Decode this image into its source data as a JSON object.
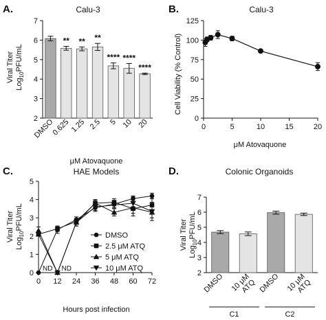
{
  "panels": {
    "A": {
      "letter": "A.",
      "title": "Calu-3",
      "ylabel_line1": "Viral Titer",
      "ylabel_line2_pre": "Log",
      "ylabel_line2_sub": "10",
      "ylabel_line2_post": "PFU/mL",
      "xlabel": "μM Atovaquone"
    },
    "B": {
      "letter": "B.",
      "title": "Calu-3",
      "ylabel": "Cell Viability (% Control)",
      "xlabel": "μM Atovaquone"
    },
    "C": {
      "letter": "C.",
      "title": "HAE Models",
      "ylabel_line1": "Viral Titer",
      "ylabel_line2_pre": "Log",
      "ylabel_line2_sub": "10",
      "ylabel_line2_post": "PFU/mL",
      "xlabel": "Hours post infection",
      "nd_label": "ND"
    },
    "D": {
      "letter": "D.",
      "title": "Colonic Organoids",
      "ylabel_line1": "Viral Titer",
      "ylabel_line2_pre": "Log",
      "ylabel_line2_sub": "10",
      "ylabel_line2_post": "PFU/mL",
      "group_labels": [
        "C1",
        "C2"
      ]
    }
  },
  "chart_data": [
    {
      "panel": "A",
      "type": "bar",
      "title": "Calu-3",
      "xlabel": "μM Atovaquone",
      "ylabel": "Viral Titer Log10PFU/mL",
      "categories": [
        "DMSO",
        "0.625",
        "1.25",
        "2.5",
        "5",
        "10",
        "20"
      ],
      "values": [
        6.08,
        5.58,
        5.55,
        5.65,
        4.68,
        4.55,
        4.27
      ],
      "errors": [
        0.12,
        0.1,
        0.1,
        0.18,
        0.15,
        0.25,
        0.04
      ],
      "significance": [
        "",
        "**",
        "**",
        "**",
        "****",
        "****",
        "****"
      ],
      "bar_colors": [
        "#a9a9a9",
        "#e4e4e4",
        "#e4e4e4",
        "#e4e4e4",
        "#e4e4e4",
        "#e4e4e4",
        "#e4e4e4"
      ],
      "ylim": [
        2,
        7
      ],
      "yticks": [
        2,
        3,
        4,
        5,
        6,
        7
      ]
    },
    {
      "panel": "B",
      "type": "line",
      "title": "Calu-3",
      "xlabel": "μM Atovaquone",
      "ylabel": "Cell Viability (% Control)",
      "x": [
        0.3,
        0.625,
        1.25,
        2.5,
        5,
        10,
        20
      ],
      "y": [
        97,
        101,
        103,
        107,
        102,
        86,
        66
      ],
      "errors": [
        5,
        3,
        3,
        5,
        3,
        2,
        5
      ],
      "xlim": [
        0,
        20
      ],
      "ylim": [
        0,
        125
      ],
      "xticks": [
        0,
        5,
        10,
        15,
        20
      ],
      "yticks": [
        0,
        25,
        50,
        75,
        100,
        125
      ]
    },
    {
      "panel": "C",
      "type": "line",
      "title": "HAE Models",
      "xlabel": "Hours post infection",
      "ylabel": "Viral Titer Log10PFU/mL",
      "xlim": [
        0,
        72
      ],
      "ylim": [
        0,
        5
      ],
      "xticks": [
        0,
        12,
        24,
        36,
        48,
        60,
        72
      ],
      "yticks": [
        0,
        1,
        2,
        3,
        4,
        5
      ],
      "nd_points": [
        {
          "x": 0,
          "y": 0
        },
        {
          "x": 12,
          "y": 0
        }
      ],
      "series": [
        {
          "name": "DMSO",
          "marker": "circle",
          "x": [
            0,
            12,
            24,
            36,
            48,
            60,
            72
          ],
          "y": [
            0,
            2.35,
            2.9,
            3.55,
            3.75,
            4.05,
            4.2
          ],
          "errors": [
            0,
            0.2,
            0.15,
            0.2,
            0.2,
            0.15,
            0.15
          ]
        },
        {
          "name": "2.5 μM ATQ",
          "marker": "square",
          "x": [
            0,
            12,
            24,
            36,
            48,
            60,
            72
          ],
          "y": [
            2.1,
            2.4,
            2.8,
            3.8,
            3.85,
            3.5,
            3.7
          ],
          "errors": [
            0.1,
            0.15,
            0.15,
            0.15,
            0.2,
            0.4,
            0.35
          ]
        },
        {
          "name": "5 μM ATQ",
          "marker": "triangle-up",
          "x": [
            0,
            12,
            24,
            36,
            48,
            60,
            72
          ],
          "y": [
            2.3,
            0,
            2.75,
            3.8,
            3.3,
            3.55,
            3.3
          ],
          "errors": [
            0.2,
            0,
            0.2,
            0.2,
            0.2,
            0.3,
            0.3
          ]
        },
        {
          "name": "10 μM ATQ",
          "marker": "triangle-down",
          "x": [
            0,
            12,
            24,
            36,
            48,
            60,
            72
          ],
          "y": [
            2.1,
            0,
            2.75,
            3.6,
            3.7,
            3.8,
            3.35
          ],
          "errors": [
            0.1,
            0,
            0.2,
            0.2,
            0.2,
            0.35,
            0.5
          ]
        }
      ]
    },
    {
      "panel": "D",
      "type": "bar",
      "title": "Colonic Organoids",
      "ylabel": "Viral Titer Log10PFU/mL",
      "categories": [
        "DMSO",
        "10 μM ATQ",
        "DMSO",
        "10 μM ATQ"
      ],
      "groups": [
        "C1",
        "C1",
        "C2",
        "C2"
      ],
      "values": [
        4.68,
        4.57,
        5.97,
        5.86
      ],
      "errors": [
        0.1,
        0.12,
        0.1,
        0.08
      ],
      "bar_colors": [
        "#a9a9a9",
        "#e4e4e4",
        "#a9a9a9",
        "#e4e4e4"
      ],
      "ylim": [
        2,
        7
      ],
      "yticks": [
        2,
        3,
        4,
        5,
        6,
        7
      ]
    }
  ]
}
